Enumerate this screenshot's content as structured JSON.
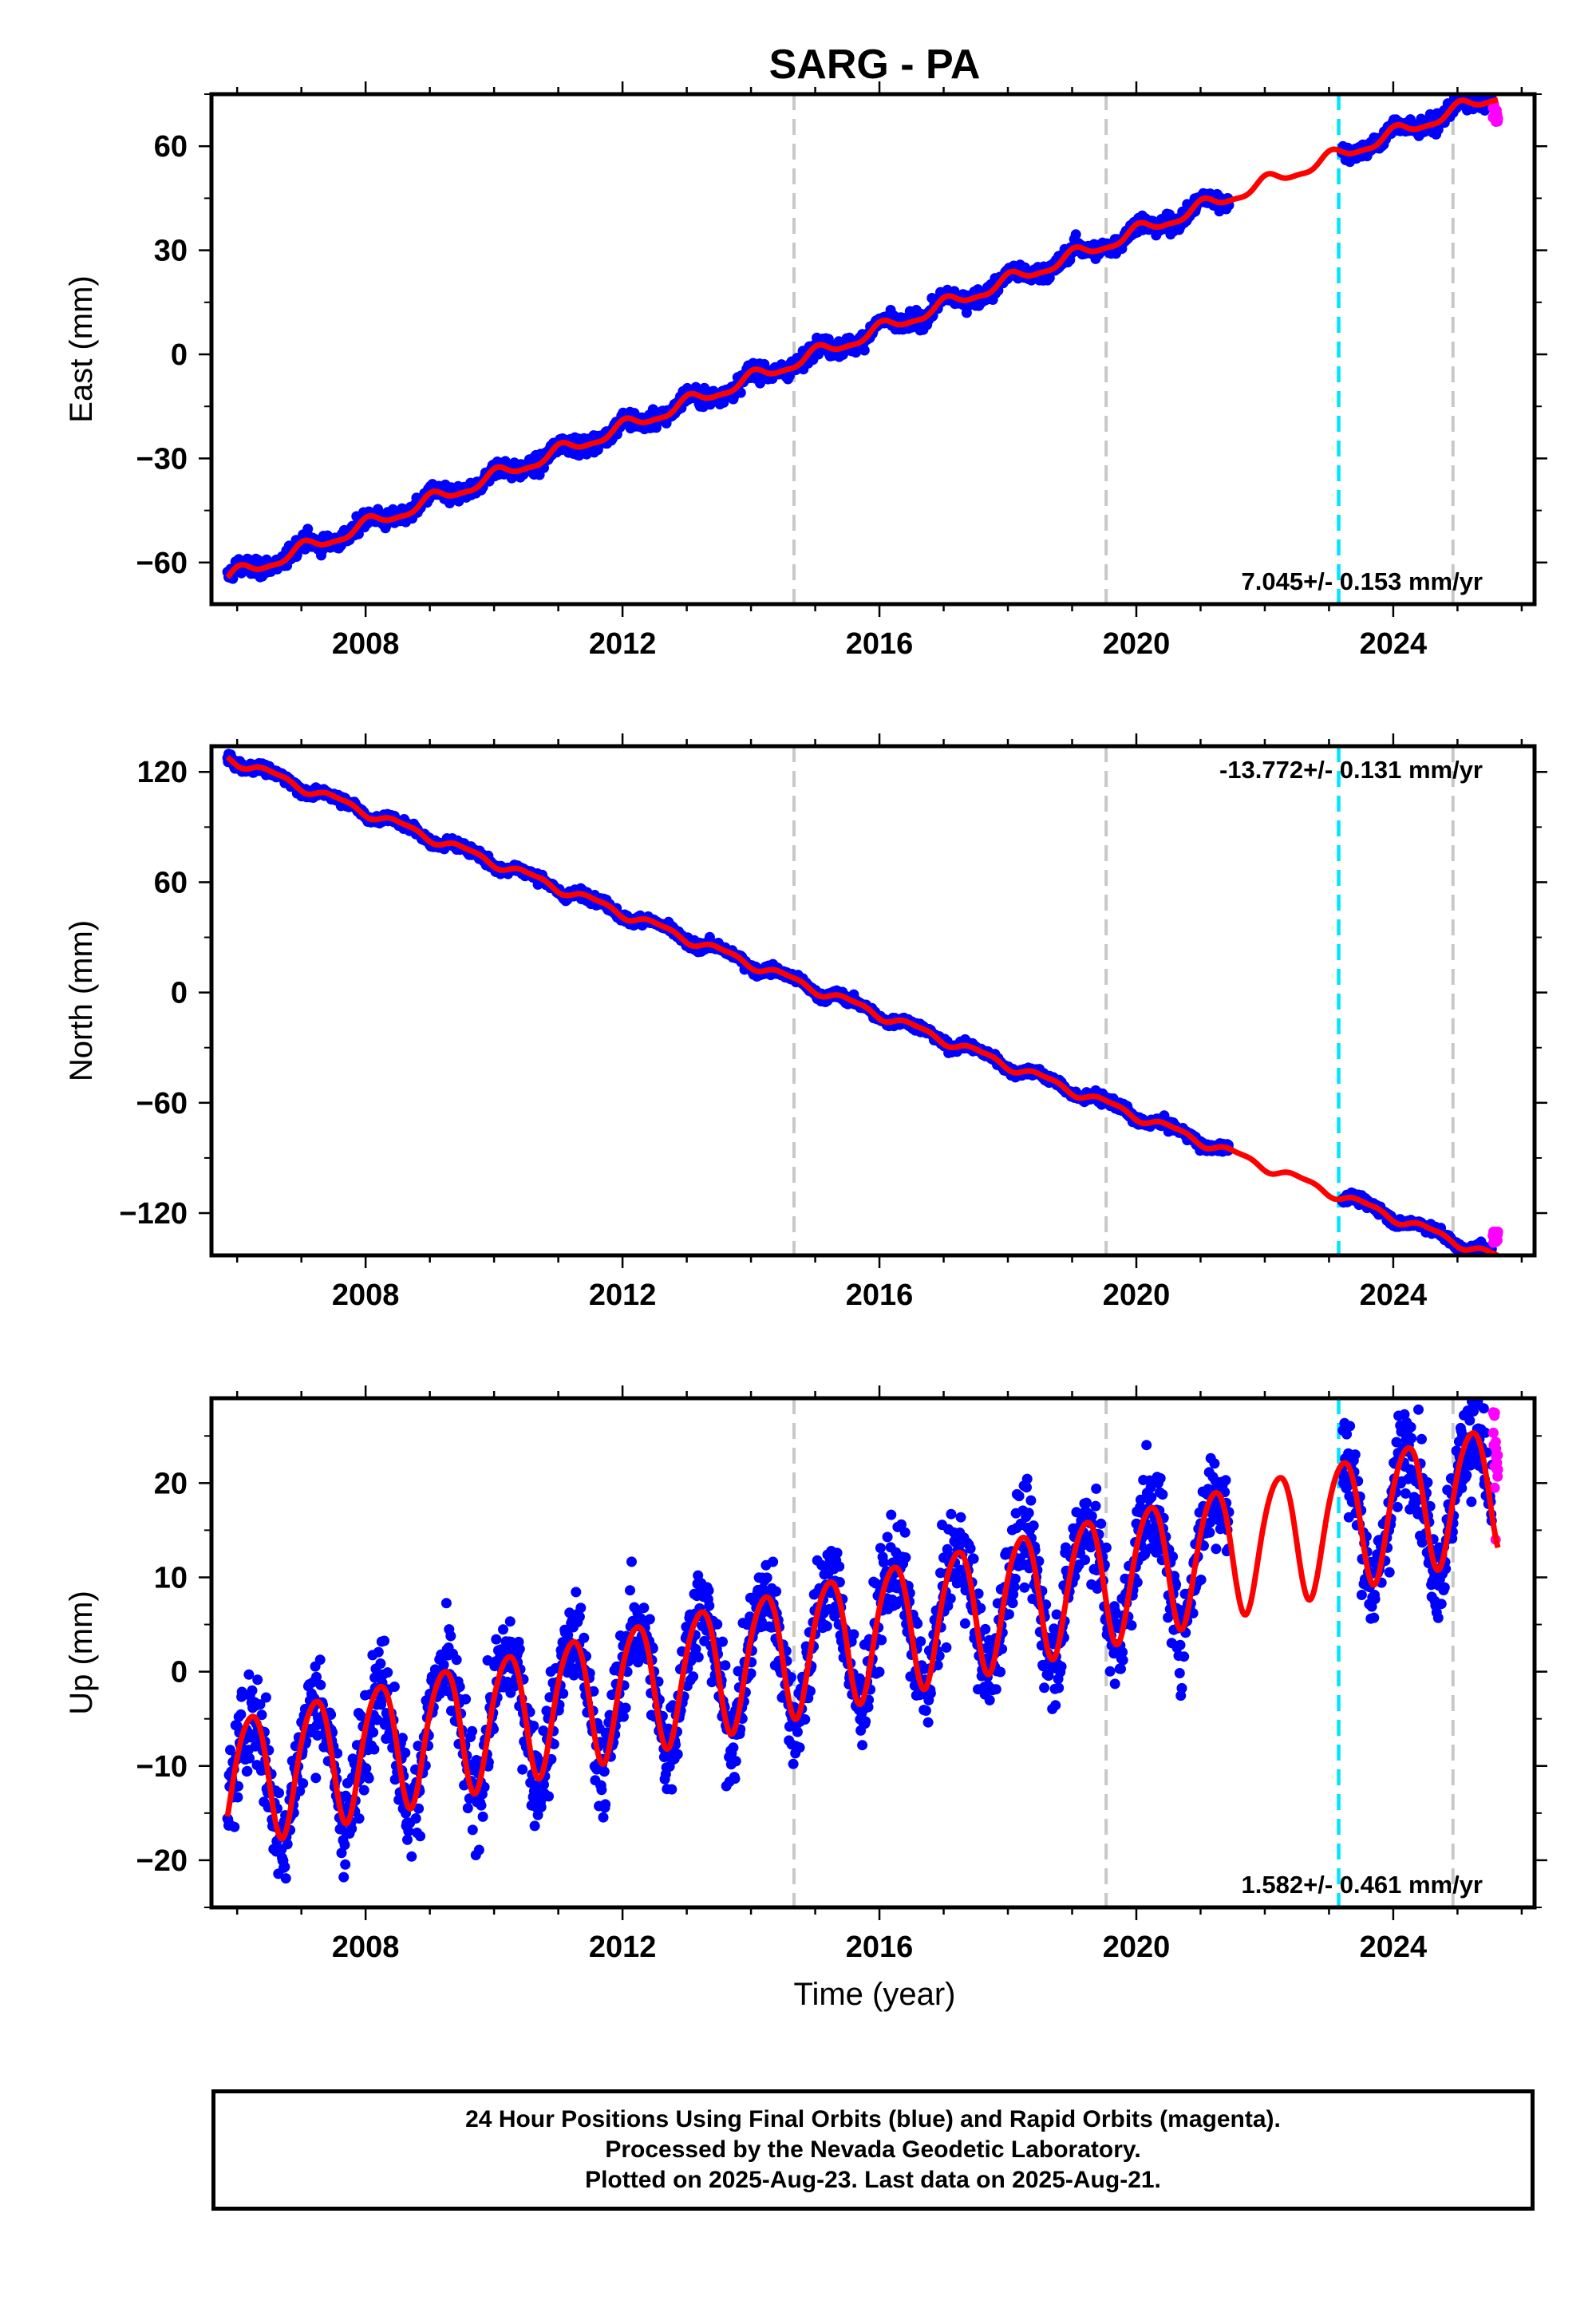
{
  "figure": {
    "title": "SARG - PA",
    "xlabel": "Time (year)"
  },
  "footer": {
    "line1": "24 Hour Positions Using Final Orbits (blue) and Rapid Orbits (magenta).",
    "line2": "Processed by the Nevada Geodetic Laboratory.",
    "line3": "Plotted on 2025-Aug-23. Last data on 2025-Aug-21."
  },
  "colors": {
    "final_points": "#0000ff",
    "rapid_points": "#ff00ff",
    "model_line": "#ff0000",
    "equipment_change_line": "#c8c8c8",
    "earthquake_line": "#00e5ff"
  },
  "chart_data": [
    {
      "type": "scatter",
      "panel": "east",
      "ylabel": "East (mm)",
      "rate_text": "7.045+/- 0.153 mm/yr",
      "rate_position": "bottom-right",
      "xlim": [
        2005.6,
        2026.2
      ],
      "ylim": [
        -72,
        75
      ],
      "xticks": [
        2008,
        2012,
        2016,
        2020,
        2024
      ],
      "yticks": [
        -60,
        -30,
        0,
        30,
        60
      ],
      "grid": false,
      "gray_dashed_x": [
        2014.67,
        2019.53,
        2024.93
      ],
      "cyan_dashed_x": [
        2023.15
      ],
      "model": {
        "start": 2005.85,
        "end": 2025.63,
        "y_at_start": -64.5,
        "rate": 7.045,
        "annual_amplitude": 1.8,
        "annual_phase": 0.2,
        "semiannual_amplitude": 0.6,
        "semiannual_phase": 0.1
      },
      "final_data_periods": [
        [
          2005.85,
          2021.45
        ],
        [
          2023.2,
          2025.55
        ]
      ],
      "rapid_data_period": [
        2025.55,
        2025.63
      ],
      "point_scatter_mm": 1.7,
      "rapid_point_range_mm": [
        67,
        72
      ]
    },
    {
      "type": "scatter",
      "panel": "north",
      "ylabel": "North (mm)",
      "rate_text": "-13.772+/- 0.131 mm/yr",
      "rate_position": "top-right",
      "xlim": [
        2005.6,
        2026.2
      ],
      "ylim": [
        -143,
        134
      ],
      "xticks": [
        2008,
        2012,
        2016,
        2020,
        2024
      ],
      "yticks": [
        -120,
        -60,
        0,
        60,
        120
      ],
      "grid": false,
      "gray_dashed_x": [
        2014.67,
        2019.53,
        2024.93
      ],
      "cyan_dashed_x": [
        2023.15
      ],
      "model": {
        "start": 2005.85,
        "end": 2025.63,
        "y_at_start": 128,
        "rate": -13.772,
        "annual_amplitude": 2.2,
        "annual_phase": 0.7,
        "semiannual_amplitude": 0.8,
        "semiannual_phase": 0.3
      },
      "final_data_periods": [
        [
          2005.85,
          2021.45
        ],
        [
          2023.2,
          2025.55
        ]
      ],
      "rapid_data_period": [
        2025.55,
        2025.63
      ],
      "point_scatter_mm": 1.8,
      "rapid_point_range_mm": [
        -137,
        -130
      ]
    },
    {
      "type": "scatter",
      "panel": "up",
      "ylabel": "Up (mm)",
      "rate_text": "1.582+/- 0.461 mm/yr",
      "rate_position": "bottom-right",
      "xlim": [
        2005.6,
        2026.2
      ],
      "ylim": [
        -25,
        29
      ],
      "xticks": [
        2008,
        2012,
        2016,
        2020,
        2024
      ],
      "yticks": [
        -20,
        -10,
        0,
        10,
        20
      ],
      "grid": false,
      "gray_dashed_x": [
        2014.67,
        2019.53,
        2024.93
      ],
      "cyan_dashed_x": [
        2023.15
      ],
      "model": {
        "start": 2005.85,
        "end": 2025.63,
        "y_at_start": -11.5,
        "rate": 1.582,
        "annual_amplitude": 6.8,
        "annual_phase": 0.04,
        "semiannual_amplitude": 0.8,
        "semiannual_phase": 0.2
      },
      "final_data_periods": [
        [
          2005.85,
          2021.45
        ],
        [
          2023.2,
          2025.55
        ]
      ],
      "rapid_data_period": [
        2025.55,
        2025.63
      ],
      "point_scatter_mm": 3.6,
      "rapid_point_range_mm": [
        13,
        28
      ]
    }
  ]
}
